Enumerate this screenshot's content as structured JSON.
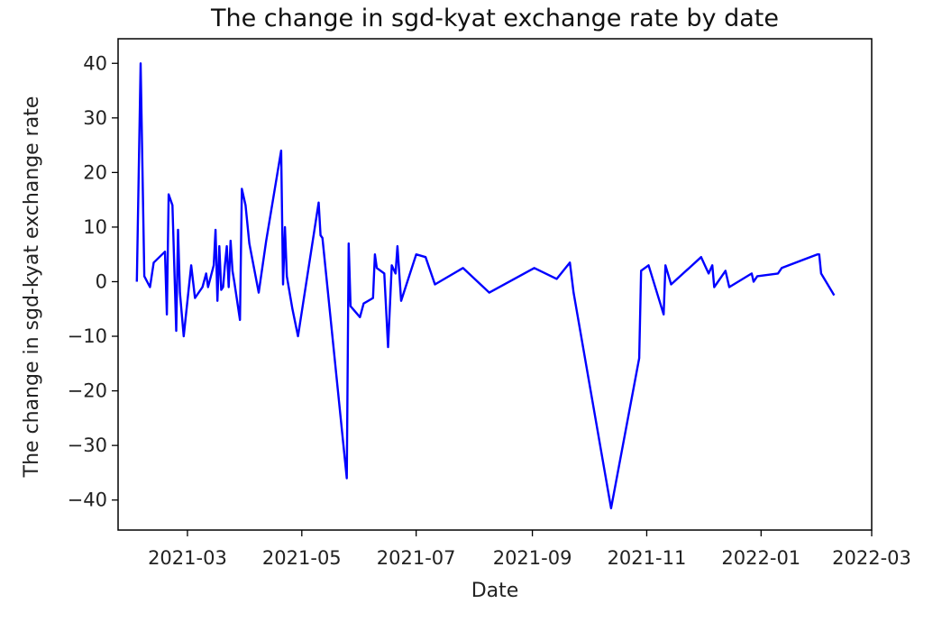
{
  "chart_data": {
    "type": "line",
    "title": "The change in sgd-kyat exchange rate by date",
    "xlabel": "Date",
    "ylabel": "The change in sgd-kyat exchange rate",
    "x_ticks": [
      "2021-03",
      "2021-05",
      "2021-07",
      "2021-09",
      "2021-11",
      "2022-01",
      "2022-03"
    ],
    "y_ticks": [
      40,
      30,
      20,
      10,
      0,
      -10,
      -20,
      -30,
      -40
    ],
    "xlim": [
      "2021-01-23",
      "2022-03-01"
    ],
    "ylim": [
      -45.5,
      44.5
    ],
    "grid": false,
    "line_color": "#0000ff",
    "series": [
      {
        "x": [
          "2021-02-02",
          "2021-02-04",
          "2021-02-06",
          "2021-02-09",
          "2021-02-11",
          "2021-02-17",
          "2021-02-18",
          "2021-02-19",
          "2021-02-21",
          "2021-02-23",
          "2021-02-24",
          "2021-02-25",
          "2021-02-27",
          "2021-03-03",
          "2021-03-05",
          "2021-03-09",
          "2021-03-11",
          "2021-03-12",
          "2021-03-15",
          "2021-03-16",
          "2021-03-17",
          "2021-03-18",
          "2021-03-19",
          "2021-03-20",
          "2021-03-21",
          "2021-03-22",
          "2021-03-23",
          "2021-03-24",
          "2021-03-25",
          "2021-03-26",
          "2021-03-29",
          "2021-03-30",
          "2021-04-01",
          "2021-04-03",
          "2021-04-08",
          "2021-04-12",
          "2021-04-20",
          "2021-04-21",
          "2021-04-22",
          "2021-04-23",
          "2021-04-26",
          "2021-04-29",
          "2021-05-10",
          "2021-05-11",
          "2021-05-12",
          "2021-05-25",
          "2021-05-26",
          "2021-05-27",
          "2021-06-01",
          "2021-06-03",
          "2021-06-08",
          "2021-06-09",
          "2021-06-10",
          "2021-06-14",
          "2021-06-16",
          "2021-06-18",
          "2021-06-20",
          "2021-06-21",
          "2021-06-23",
          "2021-07-01",
          "2021-07-06",
          "2021-07-11",
          "2021-07-26",
          "2021-08-09",
          "2021-09-02",
          "2021-09-14",
          "2021-09-21",
          "2021-09-23",
          "2021-10-13",
          "2021-10-28",
          "2021-10-29",
          "2021-11-02",
          "2021-11-10",
          "2021-11-11",
          "2021-11-14",
          "2021-11-30",
          "2021-12-02",
          "2021-12-04",
          "2021-12-06",
          "2021-12-07",
          "2021-12-09",
          "2021-12-13",
          "2021-12-15",
          "2021-12-27",
          "2021-12-28",
          "2021-12-30",
          "2022-01-10",
          "2022-01-12",
          "2022-01-31",
          "2022-02-01",
          "2022-02-02",
          "2022-02-09"
        ],
        "y": [
          0.0,
          40.0,
          1.0,
          -1.0,
          3.5,
          5.5,
          -6.0,
          16.0,
          14.0,
          -9.0,
          9.5,
          -2.0,
          -10.0,
          3.0,
          -3.0,
          -1.0,
          1.5,
          -1.0,
          3.0,
          9.5,
          -3.5,
          6.5,
          -1.5,
          -1.0,
          3.0,
          6.5,
          -1.0,
          7.5,
          2.0,
          0.0,
          -7.0,
          17.0,
          14.0,
          7.0,
          -2.0,
          7.5,
          24.0,
          -0.5,
          10.0,
          1.0,
          -5.0,
          -10.0,
          14.5,
          8.5,
          8.0,
          -36.0,
          7.0,
          -4.5,
          -6.5,
          -4.0,
          -3.0,
          5.0,
          2.5,
          1.5,
          -12.0,
          3.0,
          1.5,
          6.5,
          -3.5,
          5.0,
          4.5,
          -0.5,
          2.5,
          -2.0,
          2.5,
          0.5,
          3.5,
          -2.0,
          -41.5,
          -14.0,
          2.0,
          3.0,
          -6.0,
          3.0,
          -0.5,
          4.5,
          3.0,
          1.5,
          3.0,
          -1.0,
          0.0,
          2.0,
          -1.0,
          1.5,
          0.0,
          1.0,
          1.5,
          2.5,
          5.0,
          5.0,
          1.5,
          -2.5
        ]
      }
    ]
  }
}
